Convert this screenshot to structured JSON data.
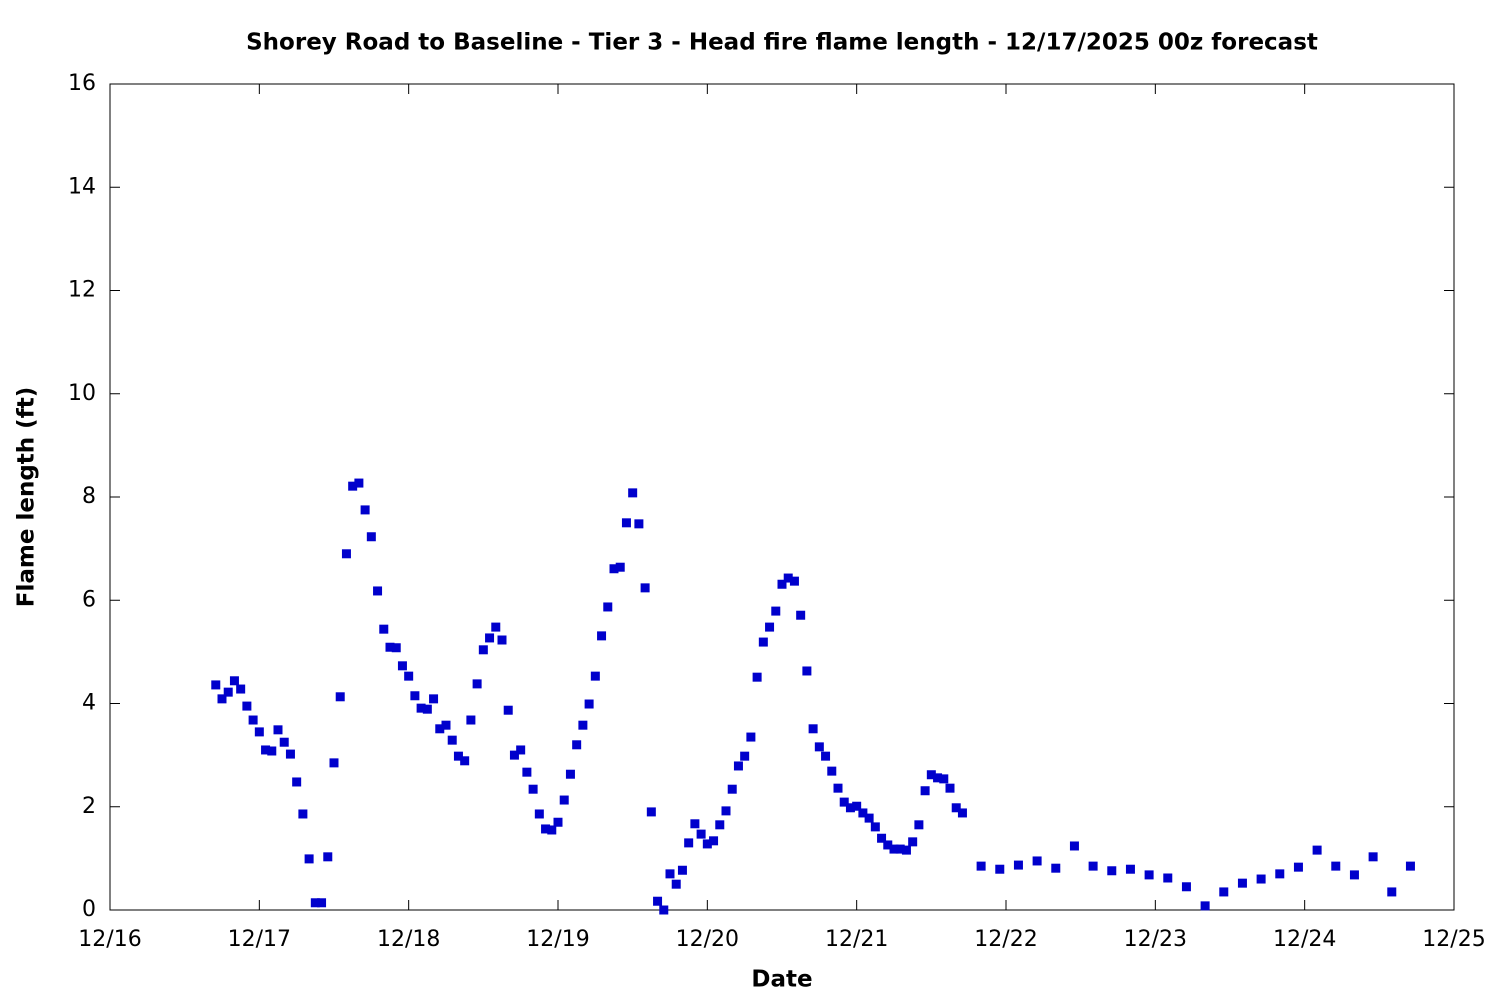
{
  "chart_data": {
    "type": "scatter",
    "title": "Shorey Road to Baseline - Tier 3 - Head fire flame length - 12/17/2025 00z forecast",
    "x_label": "Date",
    "y_label": "Flame length (ft)",
    "color": "#0000cc",
    "xlim": [
      0,
      216
    ],
    "xticks": [
      {
        "value": 0,
        "label": "12/16"
      },
      {
        "value": 24,
        "label": "12/17"
      },
      {
        "value": 48,
        "label": "12/18"
      },
      {
        "value": 72,
        "label": "12/19"
      },
      {
        "value": 96,
        "label": "12/20"
      },
      {
        "value": 120,
        "label": "12/21"
      },
      {
        "value": 144,
        "label": "12/22"
      },
      {
        "value": 168,
        "label": "12/23"
      },
      {
        "value": 192,
        "label": "12/24"
      },
      {
        "value": 216,
        "label": "12/25"
      }
    ],
    "ylim": [
      0,
      16
    ],
    "yticks": [
      0,
      2,
      4,
      6,
      8,
      10,
      12,
      14,
      16
    ],
    "x": [
      17,
      18,
      19,
      20,
      21,
      22,
      23,
      24,
      25,
      26,
      27,
      28,
      29,
      30,
      31,
      32,
      33,
      34,
      35,
      36,
      37,
      38,
      39,
      40,
      41,
      42,
      43,
      44,
      45,
      46,
      47,
      48,
      49,
      50,
      51,
      52,
      53,
      54,
      55,
      56,
      57,
      58,
      59,
      60,
      61,
      62,
      63,
      64,
      65,
      66,
      67,
      68,
      69,
      70,
      71,
      72,
      73,
      74,
      75,
      76,
      77,
      78,
      79,
      80,
      81,
      82,
      83,
      84,
      85,
      86,
      87,
      88,
      89,
      90,
      91,
      92,
      93,
      94,
      95,
      96,
      97,
      98,
      99,
      100,
      101,
      102,
      103,
      104,
      105,
      106,
      107,
      108,
      109,
      110,
      111,
      112,
      113,
      114,
      115,
      116,
      117,
      118,
      119,
      120,
      121,
      122,
      123,
      124,
      125,
      126,
      127,
      128,
      129,
      130,
      131,
      132,
      133,
      134,
      135,
      136,
      137,
      140,
      143,
      146,
      149,
      152,
      155,
      158,
      161,
      164,
      167,
      170,
      173,
      176,
      179,
      182,
      185,
      188,
      191,
      194,
      197,
      200,
      203,
      206,
      209
    ],
    "values": [
      4.36,
      4.09,
      4.22,
      4.44,
      4.28,
      3.95,
      3.68,
      3.45,
      3.1,
      3.08,
      3.49,
      3.25,
      3.02,
      2.48,
      1.86,
      0.99,
      0.14,
      0.14,
      1.03,
      2.85,
      4.13,
      6.9,
      8.21,
      8.27,
      7.75,
      7.23,
      6.18,
      5.44,
      5.09,
      5.08,
      4.73,
      4.53,
      4.15,
      3.91,
      3.89,
      4.09,
      3.51,
      3.58,
      3.29,
      2.98,
      2.89,
      3.68,
      4.38,
      5.04,
      5.27,
      5.48,
      5.23,
      3.87,
      3.0,
      3.1,
      2.67,
      2.34,
      1.86,
      1.57,
      1.55,
      1.7,
      2.13,
      2.63,
      3.2,
      3.58,
      3.99,
      4.53,
      5.31,
      5.87,
      6.61,
      6.64,
      7.5,
      8.08,
      7.48,
      6.24,
      1.9,
      0.17,
      0.0,
      0.7,
      0.5,
      0.77,
      1.3,
      1.67,
      1.47,
      1.28,
      1.34,
      1.65,
      1.92,
      2.34,
      2.79,
      2.98,
      3.35,
      4.51,
      5.19,
      5.48,
      5.79,
      6.31,
      6.43,
      6.37,
      5.71,
      4.63,
      3.51,
      3.16,
      2.98,
      2.69,
      2.36,
      2.09,
      1.98,
      2.01,
      1.88,
      1.78,
      1.61,
      1.39,
      1.26,
      1.18,
      1.18,
      1.16,
      1.32,
      1.65,
      2.31,
      2.62,
      2.56,
      2.54,
      2.36,
      1.98,
      1.88,
      0.85,
      0.79,
      0.87,
      0.95,
      0.81,
      1.24,
      0.85,
      0.76,
      0.79,
      0.68,
      0.62,
      0.45,
      0.08,
      0.35,
      0.52,
      0.6,
      0.7,
      0.83,
      1.16,
      0.85,
      0.68,
      1.03,
      0.35,
      0.85
    ]
  }
}
